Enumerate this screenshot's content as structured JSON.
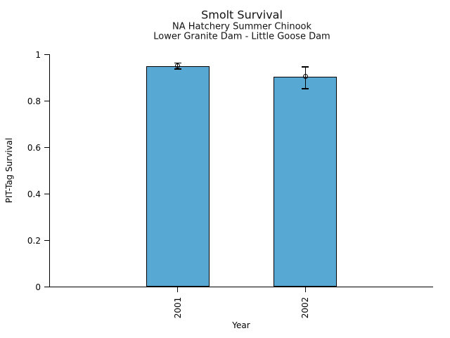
{
  "chart_data": {
    "type": "bar",
    "title": "Smolt Survival",
    "subtitles": [
      "NA Hatchery Summer Chinook",
      "Lower Granite Dam - Little Goose Dam"
    ],
    "xlabel": "Year",
    "ylabel": "PIT-Tag Survival",
    "categories": [
      "2001",
      "2002"
    ],
    "values": [
      0.951,
      0.905
    ],
    "error_low": [
      0.938,
      0.853
    ],
    "error_high": [
      0.964,
      0.947
    ],
    "ylim": [
      0,
      1
    ],
    "yticks": [
      0,
      0.2,
      0.4,
      0.6,
      0.8,
      1
    ],
    "ytick_labels": [
      "0",
      "0.2",
      "0.4",
      "0.6",
      "0.8",
      "1"
    ],
    "grid": false,
    "legend": null,
    "marker": "open-circle",
    "bar_color": "#57A8D3",
    "bar_edge_color": "#000000",
    "error_color": "#000000",
    "axis_color": "#000000"
  }
}
